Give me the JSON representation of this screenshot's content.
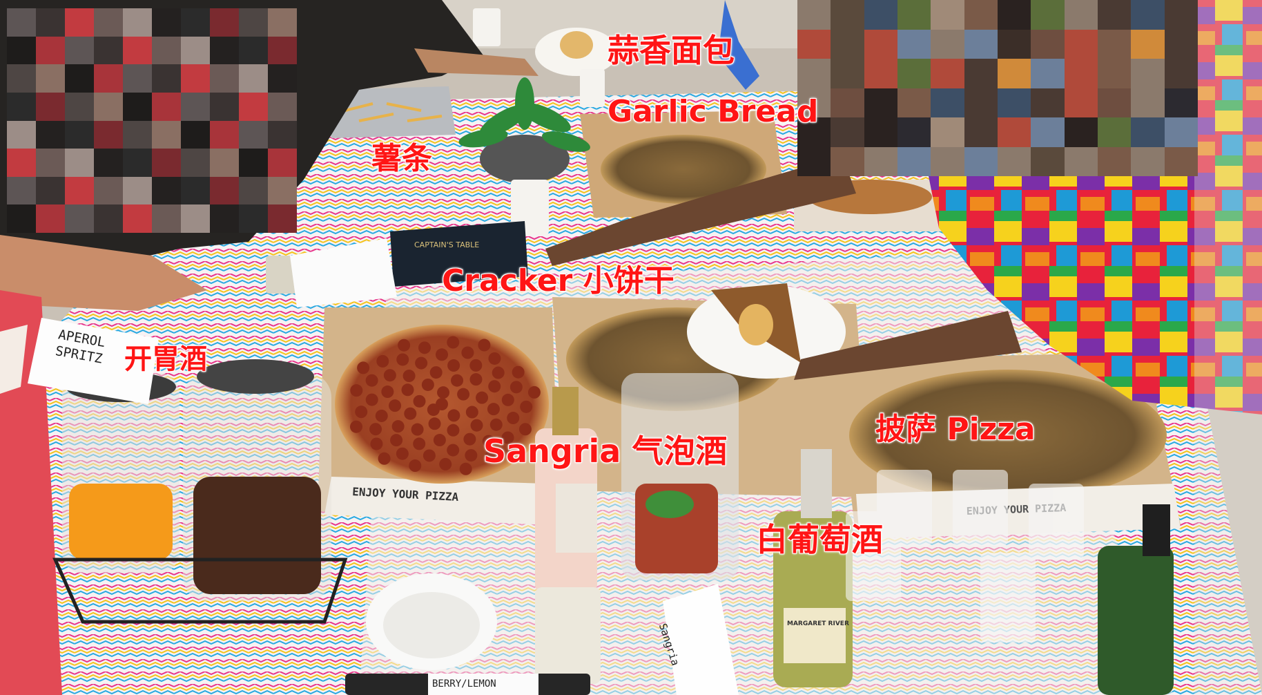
{
  "photo": {
    "description_label": "Party buffet table photo"
  },
  "annotations": {
    "garlic_bread_cn": "蒜香面包",
    "garlic_bread_en": "Garlic Bread",
    "fries_cn": "薯条",
    "cracker": "Cracker 小饼干",
    "aperitif_cn": "开胃酒",
    "pizza": "披萨 Pizza",
    "sangria": "Sangria 气泡酒",
    "white_wine_cn": "白葡萄酒"
  },
  "handwritten": {
    "aperol_card": "APEROL\nSPRITZ",
    "sangria_card": "Sangria",
    "lemon_card": "BERRY/LEMON"
  },
  "printed": {
    "pizza_box_1": "ENJOY YOUR PIZZA",
    "pizza_box_2": "ENJOY YOUR PIZZA",
    "wine_label": "MARGARET RIVER",
    "cracker_box": "CAPTAIN'S TABLE"
  },
  "colors": {
    "annotation_red": "#ff1515",
    "annotation_outline": "#ffffff"
  }
}
